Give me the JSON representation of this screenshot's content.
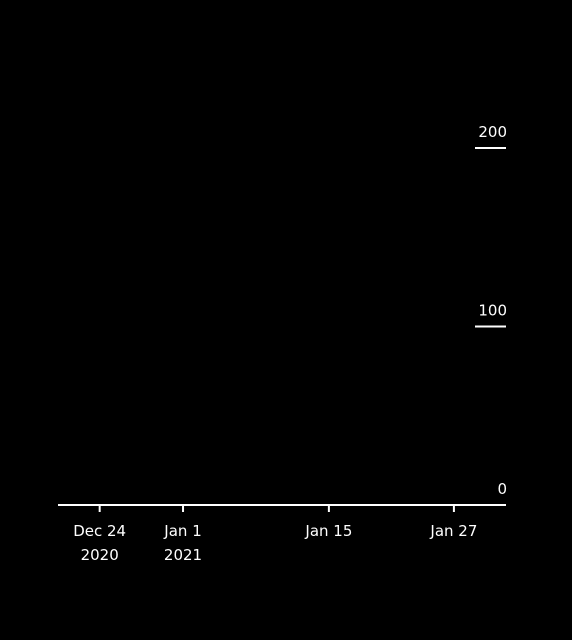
{
  "chart_data": {
    "type": "line",
    "title": "",
    "xlabel": "",
    "ylabel": "",
    "x_axis": {
      "scale": "time",
      "range": [
        "2020-12-20",
        "2021-02-01"
      ],
      "ticks": [
        {
          "value": "2020-12-24",
          "label": "Dec 24",
          "sublabel": "2020"
        },
        {
          "value": "2021-01-01",
          "label": "Jan 1",
          "sublabel": "2021"
        },
        {
          "value": "2021-01-15",
          "label": "Jan 15",
          "sublabel": ""
        },
        {
          "value": "2021-01-27",
          "label": "Jan 27",
          "sublabel": ""
        }
      ]
    },
    "y_axis": {
      "range": [
        0,
        200
      ],
      "position": "right",
      "ticks": [
        {
          "value": 0,
          "label": "0"
        },
        {
          "value": 100,
          "label": "100"
        },
        {
          "value": 200,
          "label": "200"
        }
      ]
    },
    "series": [],
    "grid": false,
    "legend": "none",
    "colors": {
      "background": "#000000",
      "foreground": "#ffffff"
    }
  }
}
